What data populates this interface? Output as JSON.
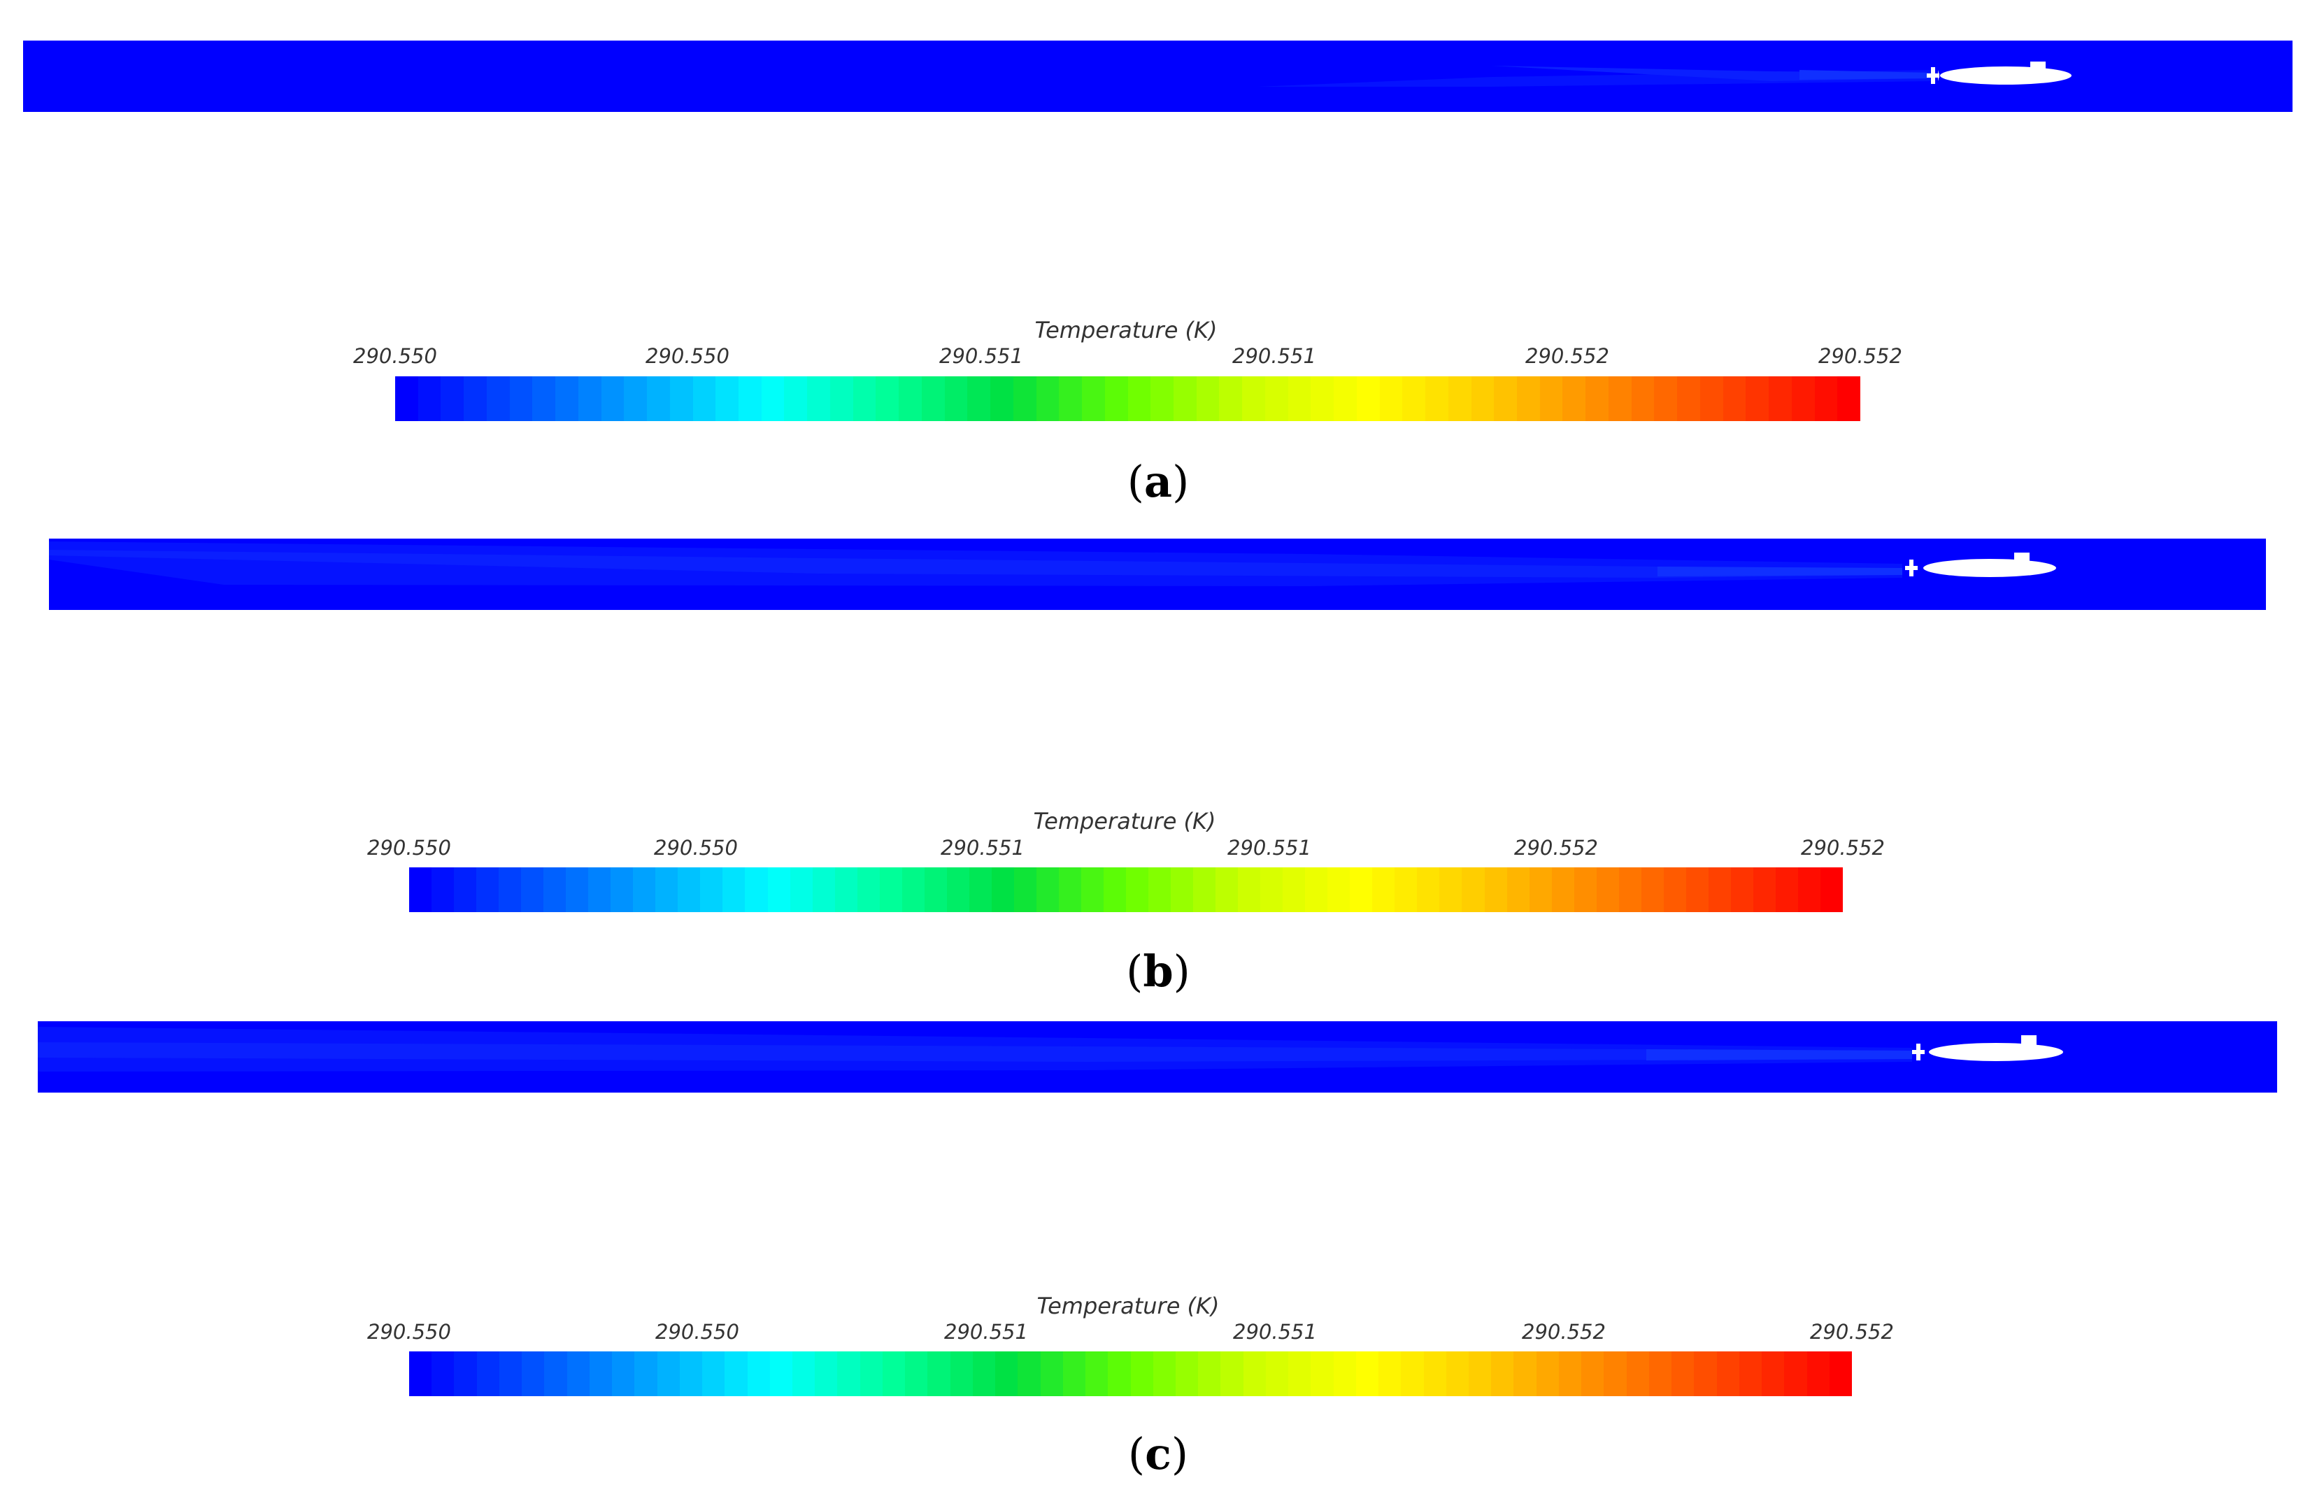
{
  "colors": {
    "background": "#0000ff",
    "wake_shades": [
      "#0512ff",
      "#0a1fff",
      "#1030ff"
    ],
    "hull": "#ffffff",
    "colormap": [
      "#0000ff",
      "#0055ff",
      "#00aaff",
      "#00ffff",
      "#00ff99",
      "#00e040",
      "#66ff00",
      "#ccff00",
      "#ffff00",
      "#ffcc00",
      "#ff8800",
      "#ff4400",
      "#ff0000"
    ]
  },
  "panels": [
    {
      "label": "a",
      "colorbar": {
        "title": "Temperature (K)",
        "ticks": [
          "290.550",
          "290.550",
          "290.551",
          "290.551",
          "290.552",
          "290.552"
        ]
      }
    },
    {
      "label": "b",
      "colorbar": {
        "title": "Temperature (K)",
        "ticks": [
          "290.550",
          "290.550",
          "290.551",
          "290.551",
          "290.552",
          "290.552"
        ]
      }
    },
    {
      "label": "c",
      "colorbar": {
        "title": "Temperature (K)",
        "ticks": [
          "290.550",
          "290.550",
          "290.551",
          "290.551",
          "290.552",
          "290.552"
        ]
      }
    }
  ]
}
